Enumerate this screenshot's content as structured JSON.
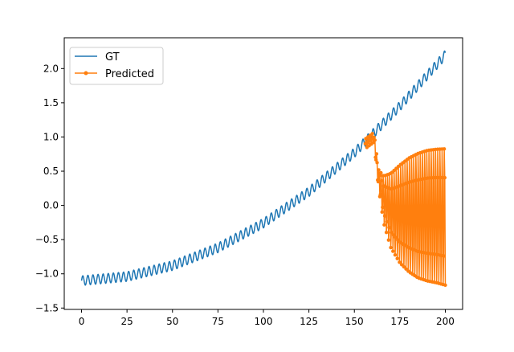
{
  "chart_data": {
    "type": "line",
    "title": "",
    "xlabel": "",
    "ylabel": "",
    "xlim": [
      -9.5,
      209.5
    ],
    "ylim": [
      -1.52,
      2.45
    ],
    "x_ticks": [
      0,
      25,
      50,
      75,
      100,
      125,
      150,
      175,
      200
    ],
    "y_ticks": [
      -1.5,
      -1.0,
      -0.5,
      0.0,
      0.5,
      1.0,
      1.5,
      2.0
    ],
    "x_tick_labels": [
      "0",
      "25",
      "50",
      "75",
      "100",
      "125",
      "150",
      "175",
      "200"
    ],
    "y_tick_labels": [
      "−1.5",
      "−1.0",
      "−0.5",
      "0.0",
      "0.5",
      "1.0",
      "1.5",
      "2.0"
    ],
    "grid": false,
    "legend_position": "top-left",
    "series": [
      {
        "name": "GT",
        "color": "#1f77b4",
        "marker": "none",
        "x_range": [
          0,
          200
        ],
        "trend_points": [
          [
            0,
            -1.1
          ],
          [
            25,
            -1.04
          ],
          [
            50,
            -0.88
          ],
          [
            75,
            -0.62
          ],
          [
            100,
            -0.26
          ],
          [
            125,
            0.2
          ],
          [
            150,
            0.77
          ],
          [
            175,
            1.45
          ],
          [
            200,
            2.2
          ]
        ],
        "oscillation_amplitude": 0.07,
        "oscillation_period": 2.8
      },
      {
        "name": "Predicted",
        "color": "#ff7f0e",
        "marker": "dot",
        "segments": [
          {
            "x_range": [
              156,
              161
            ],
            "trend_points": [
              [
                156,
                0.9
              ],
              [
                161,
                1.0
              ]
            ],
            "oscillation_amplitude": 0.07,
            "oscillation_period": 1.2
          },
          {
            "x_range": [
              161,
              200
            ],
            "lower_envelope": [
              [
                161,
                0.85
              ],
              [
                163,
                0.3
              ],
              [
                166,
                -0.3
              ],
              [
                170,
                -0.7
              ],
              [
                175,
                -0.95
              ],
              [
                180,
                -1.1
              ],
              [
                185,
                -1.2
              ],
              [
                190,
                -1.25
              ],
              [
                195,
                -1.28
              ],
              [
                200,
                -1.32
              ]
            ],
            "upper_envelope": [
              [
                161,
                1.1
              ],
              [
                163,
                0.55
              ],
              [
                166,
                0.48
              ],
              [
                170,
                0.55
              ],
              [
                175,
                0.7
              ],
              [
                180,
                0.82
              ],
              [
                185,
                0.9
              ],
              [
                190,
                0.95
              ],
              [
                195,
                0.97
              ],
              [
                200,
                0.98
              ]
            ],
            "oscillation_period": 1.2
          }
        ]
      }
    ]
  }
}
